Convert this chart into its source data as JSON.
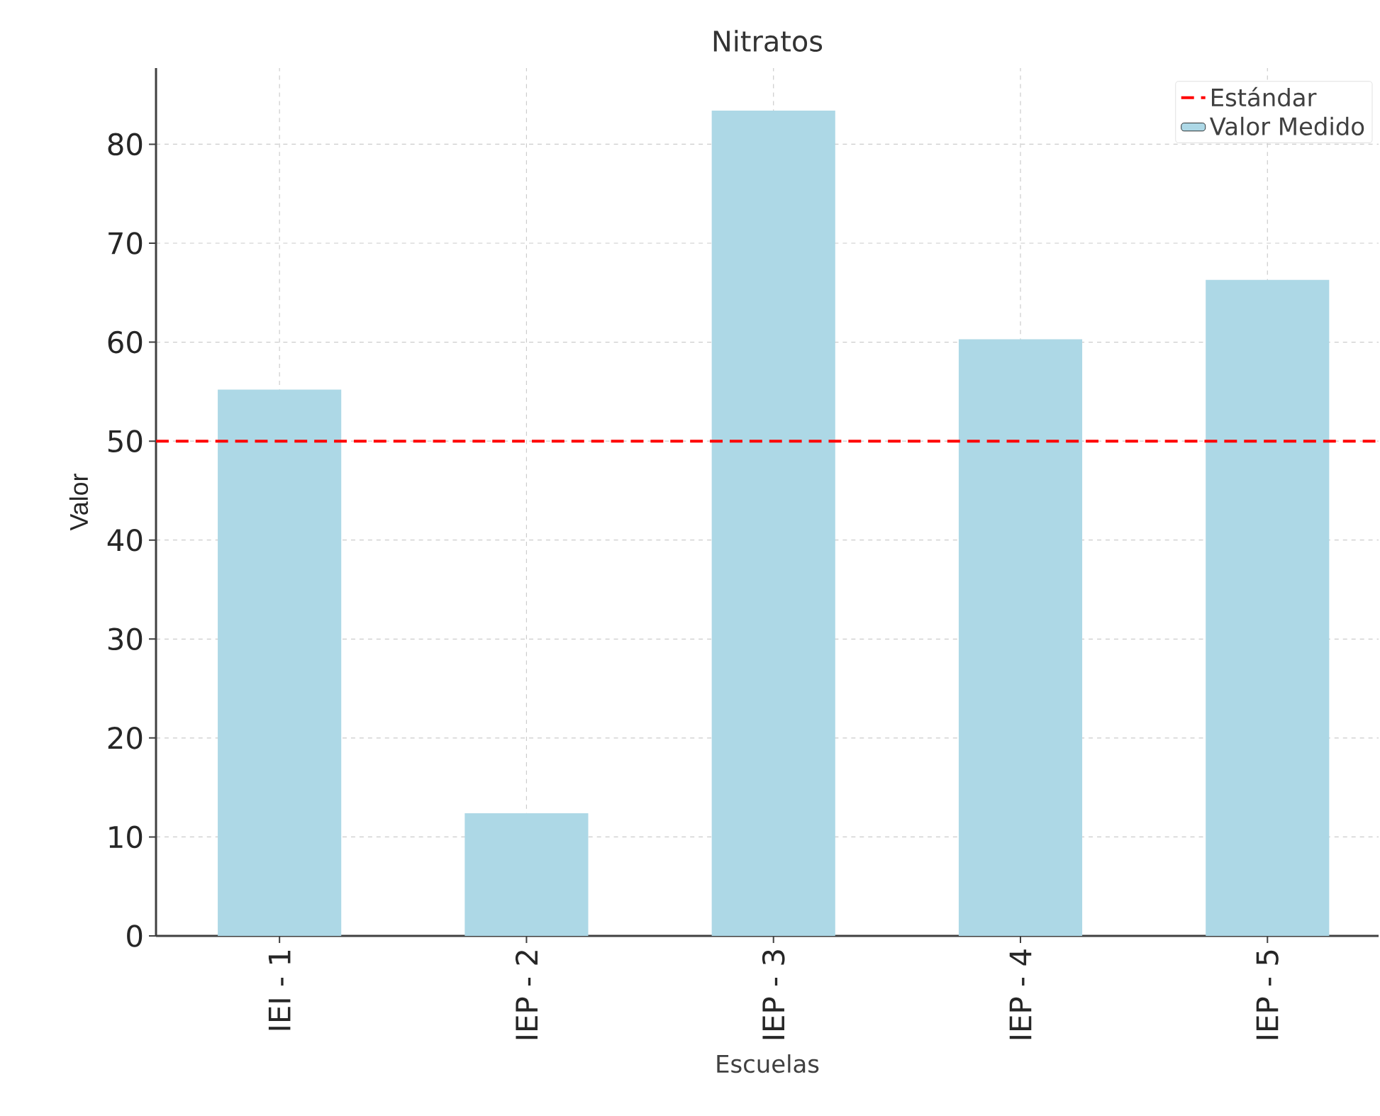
{
  "chart_data": {
    "type": "bar",
    "title": "Nitratos",
    "xlabel": "Escuelas",
    "ylabel": "Valor",
    "categories": [
      "IEI - 1",
      "IEP - 2",
      "IEP - 3",
      "IEP - 4",
      "IEP - 5"
    ],
    "series": [
      {
        "name": "Valor Medido",
        "color": "#add8e6",
        "values": [
          55.2,
          12.4,
          83.4,
          60.3,
          66.3
        ]
      }
    ],
    "ylim": [
      0,
      87.7
    ],
    "yticks": [
      0,
      10,
      20,
      30,
      40,
      50,
      60,
      70,
      80
    ],
    "ref_lines": [
      {
        "axis": "y",
        "value": 50,
        "label": "Estándar",
        "color": "#ff0000",
        "line_style": "dashed"
      }
    ],
    "grid": true,
    "legend": "top right"
  }
}
